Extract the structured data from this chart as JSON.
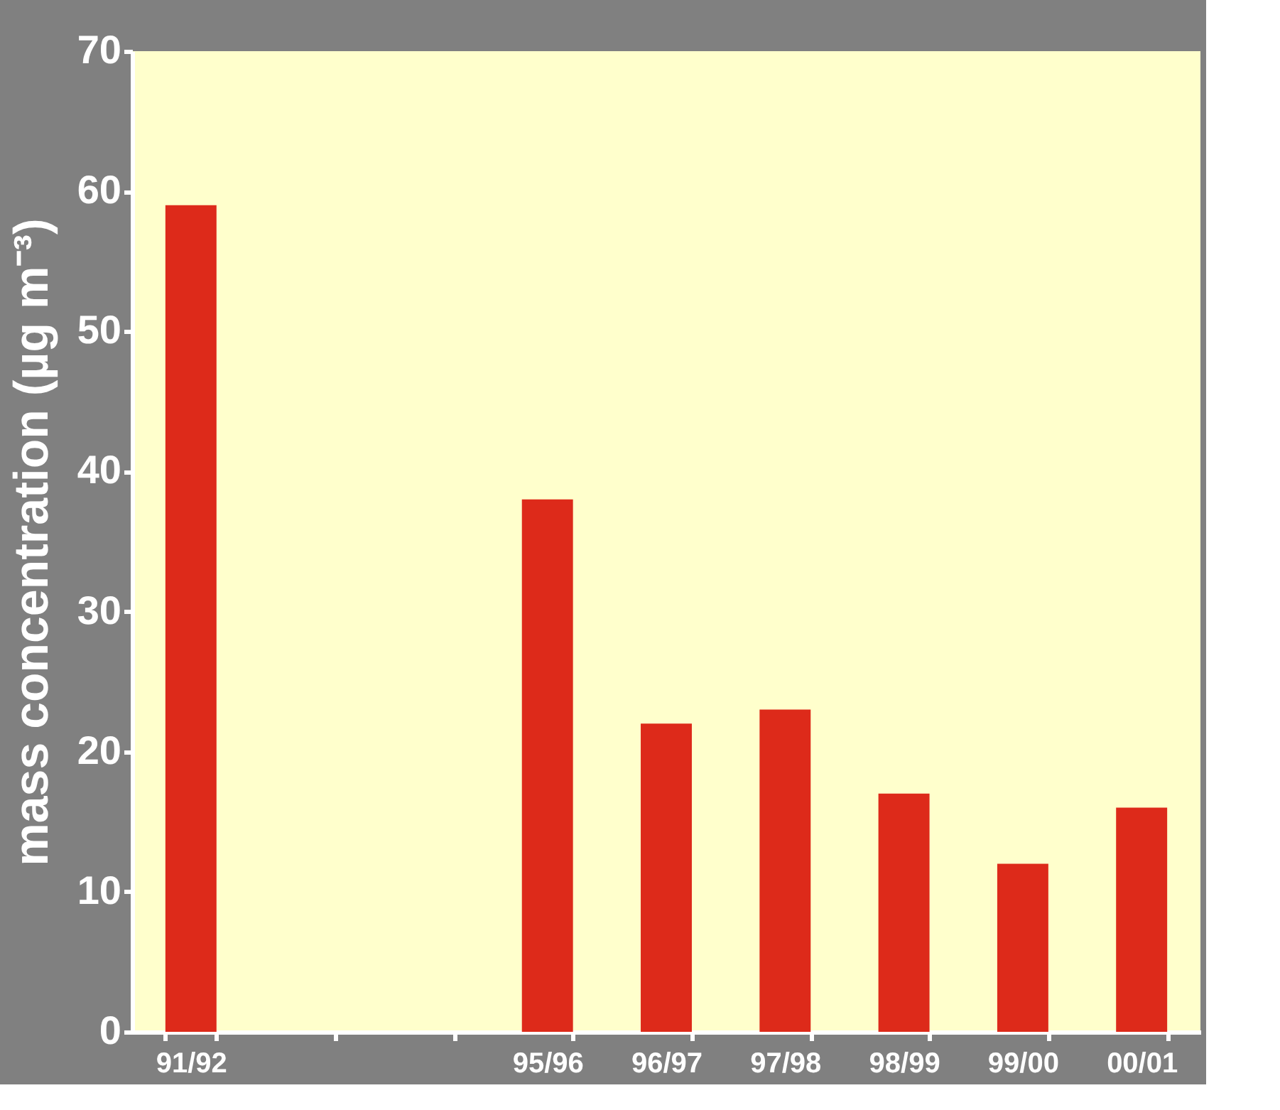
{
  "chart_data": {
    "type": "bar",
    "ylabel": "mass concentration (µg m⁻³)",
    "categories": [
      "91/92",
      null,
      null,
      "95/96",
      "96/97",
      "97/98",
      "98/99",
      "99/00",
      "00/01"
    ],
    "values": [
      59,
      null,
      null,
      38,
      22,
      23,
      17,
      12,
      16
    ],
    "color": "#dd2a1a",
    "ylim": [
      0,
      70
    ],
    "yticks": [
      0,
      10,
      20,
      30,
      40,
      50,
      60,
      70
    ],
    "grid": false
  }
}
